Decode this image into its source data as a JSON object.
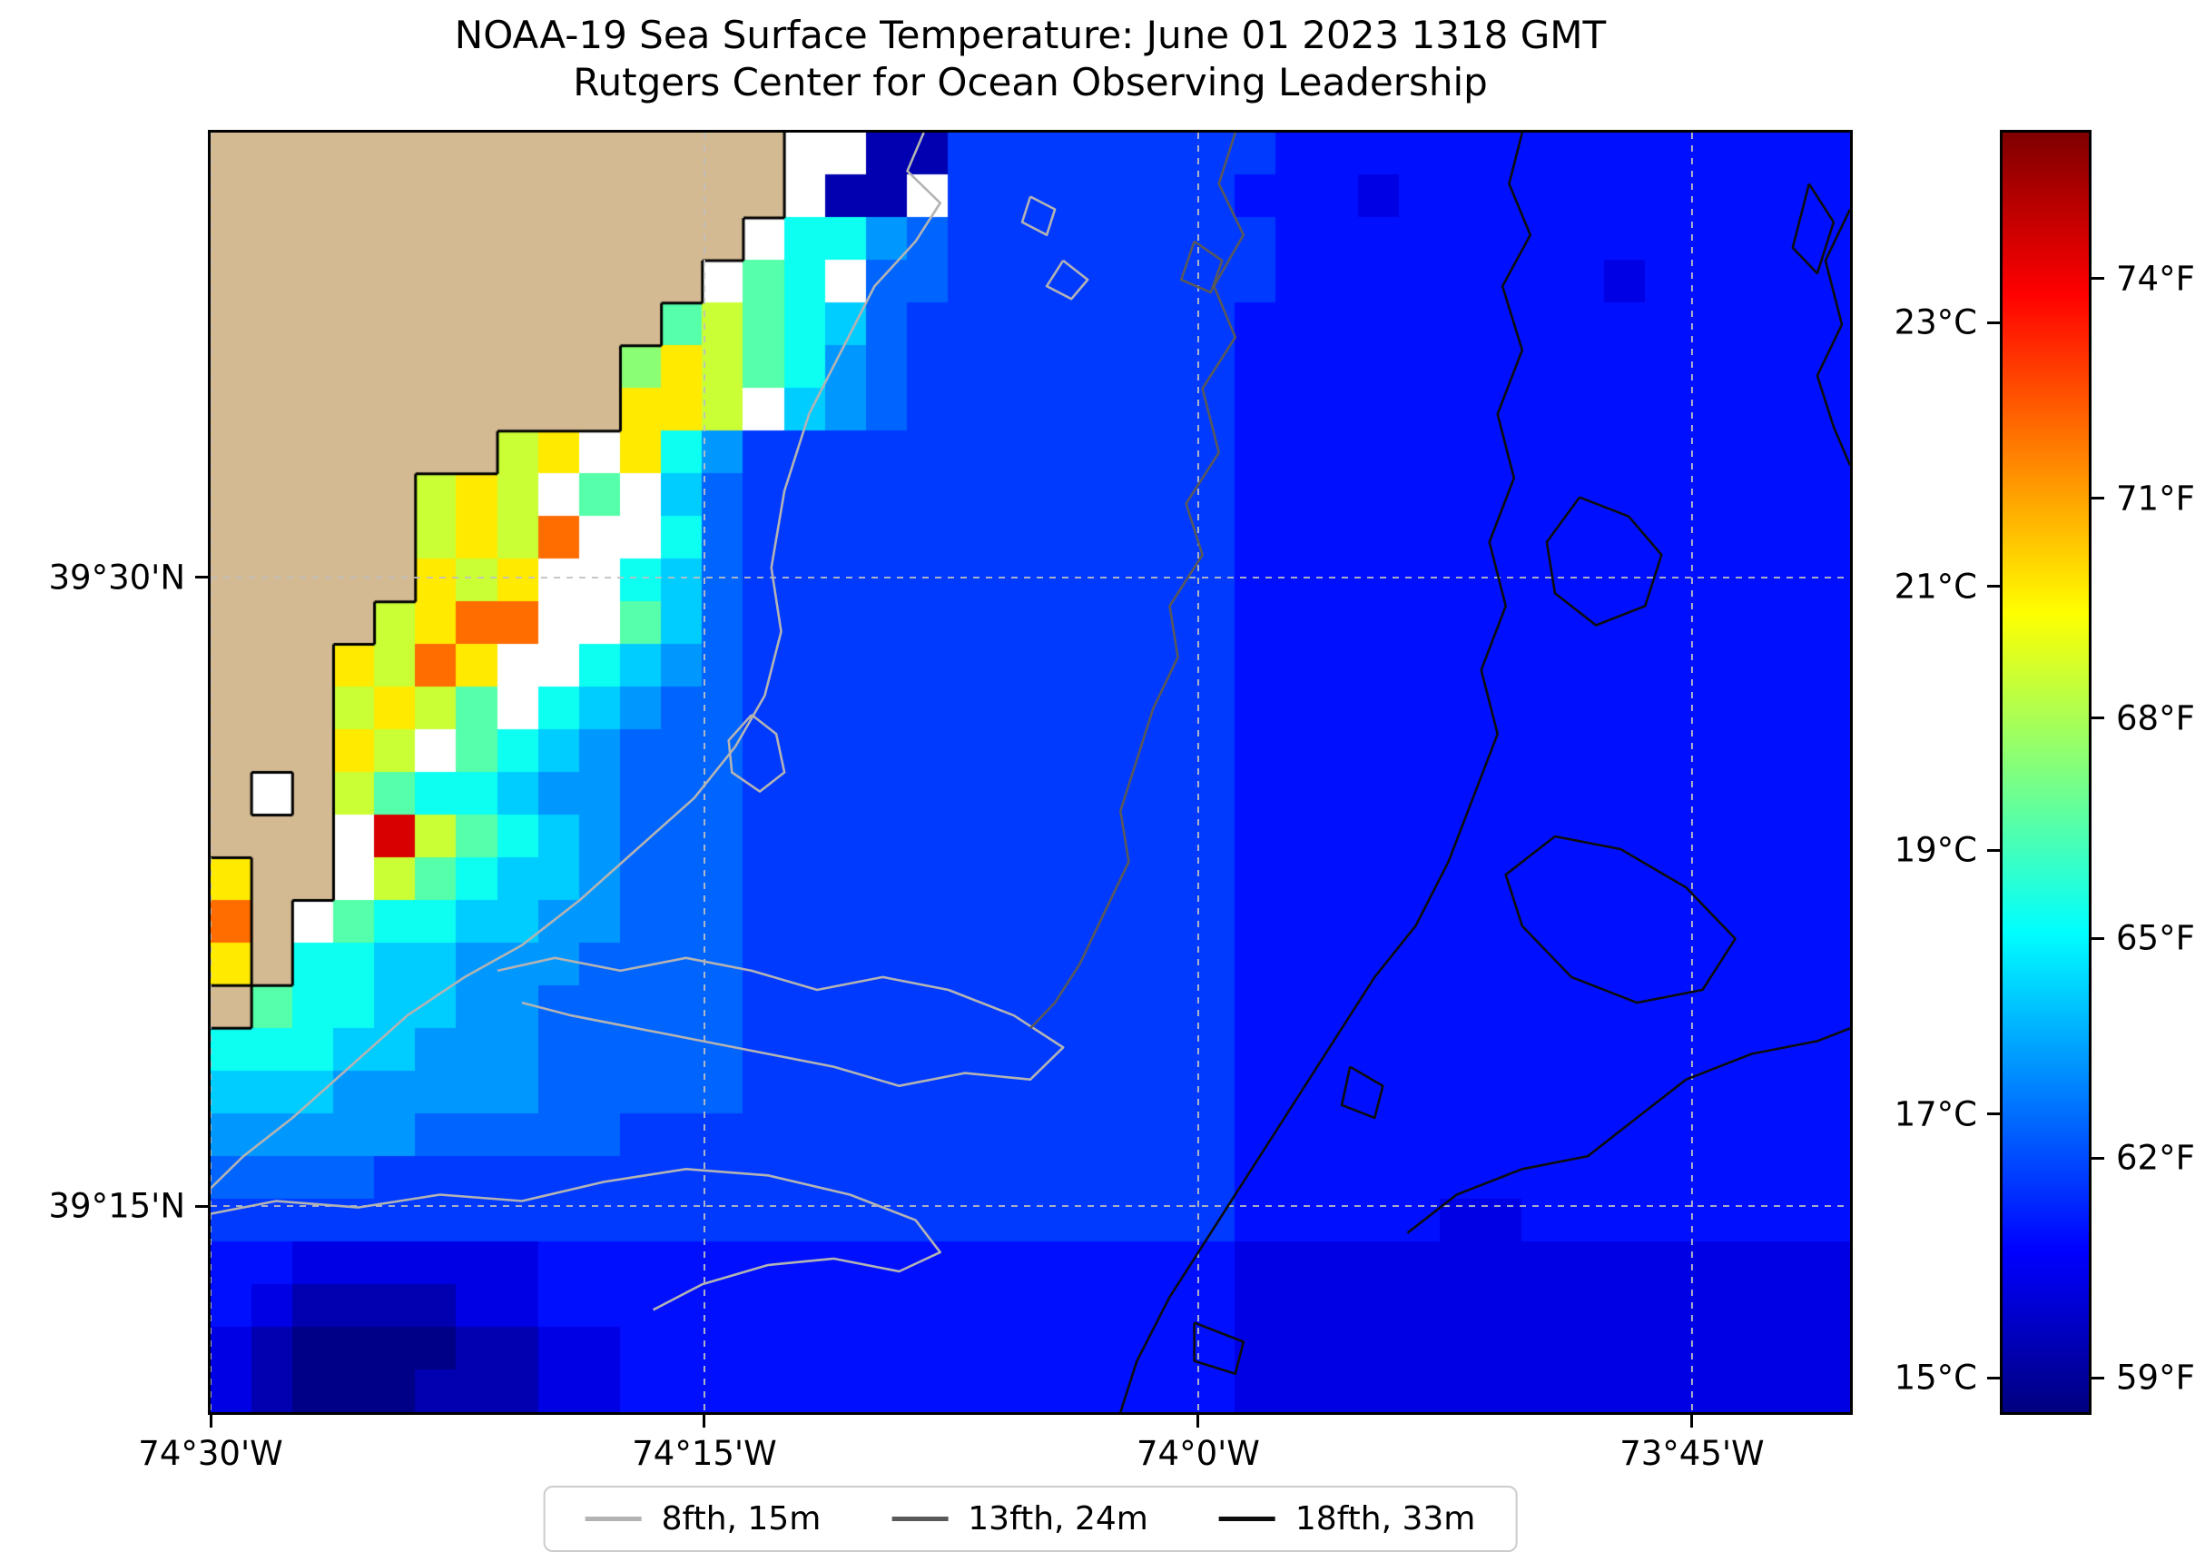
{
  "chart_data": {
    "type": "heatmap",
    "title": "NOAA-19 Sea Surface Temperature: June 01 2023 1318 GMT",
    "subtitle": "Rutgers Center for Ocean Observing Leadership",
    "xlabel": "",
    "ylabel": "",
    "lon_range": [
      -74.5,
      -73.67
    ],
    "lat_range": [
      39.168,
      39.677
    ],
    "grid_on": true,
    "colormap": "jet",
    "xticks": [
      {
        "lon": -74.5,
        "label": "74°30'W"
      },
      {
        "lon": -74.25,
        "label": "74°15'W"
      },
      {
        "lon": -74.0,
        "label": "74°0'W"
      },
      {
        "lon": -73.75,
        "label": "73°45'W"
      }
    ],
    "yticks": [
      {
        "lat": 39.5,
        "label": "39°30'N"
      },
      {
        "lat": 39.25,
        "label": "39°15'N"
      }
    ],
    "colorbar": {
      "vmin_c": 14.74,
      "vmax_c": 24.44,
      "ticks_celsius": [
        {
          "c": 15,
          "label": "15°C"
        },
        {
          "c": 17,
          "label": "17°C"
        },
        {
          "c": 19,
          "label": "19°C"
        },
        {
          "c": 21,
          "label": "21°C"
        },
        {
          "c": 23,
          "label": "23°C"
        }
      ],
      "ticks_fahrenheit": [
        {
          "c": 15.0,
          "label": "59°F"
        },
        {
          "c": 16.667,
          "label": "62°F"
        },
        {
          "c": 18.333,
          "label": "65°F"
        },
        {
          "c": 20.0,
          "label": "68°F"
        },
        {
          "c": 21.667,
          "label": "71°F"
        },
        {
          "c": 23.333,
          "label": "74°F"
        }
      ]
    },
    "legend": {
      "items": [
        {
          "label": "8fth, 15m",
          "color": "#b3b3b3"
        },
        {
          "label": "13fth, 24m",
          "color": "#595959"
        },
        {
          "label": "18fth, 33m",
          "color": "#0d0d0d"
        }
      ]
    },
    "colors": {
      "land": "#d4ba93",
      "nodata": "#ffffff",
      "coastline": "#000000",
      "gridline": "#c0c0c0"
    },
    "cell_encoding": {
      "L": "land",
      ".": "no-data",
      "0": 14.8,
      "1": 15.2,
      "2": 15.7,
      "3": 16.1,
      "4": 16.5,
      "5": 16.9,
      "6": 17.4,
      "7": 17.9,
      "8": 18.5,
      "9": 19.2,
      "a": 19.7,
      "b": 20.3,
      "c": 21.0,
      "d": 21.6,
      "e": 22.2,
      "f": 22.8,
      "g": 23.6
    },
    "sst_grid_rows_north_to_south": [
      "LLLLLLLLLLLLLL..114444444433333333333333",
      "LLLLLLLLLLLLLL.11.4444444333233333333333",
      "LLLLLLLLLLLLL.88654444444433333333333333",
      "LLLLLLLLLLLL.98.554444444433333333233333",
      "LLLLLLLLLLL9b987544444444333333333333333",
      "LLLLLLLLLLacb986544444444333333333333333",
      "LLLLLLLLLLccb.76544444444333333333333333",
      "LLLLLLLbc.c86444444444444333333333333333",
      "LLLLLbcb.9.75444444444444333333333333333",
      "LLLLLbcbe..85444444444444333333333333333",
      "LLLLLcbc..875444444444444333333333333333",
      "LLLLbcee..975444444444444333333333333333",
      "LLLcbec..8765444444444444333333333333333",
      "LLLbcb9.87655444444444444333333333333333",
      "LLLcb.9876555444444444444333333333333333",
      "L.Lb988766555444444444444333333333333333",
      "LLL.gb9876555444444444444333333333333333",
      "cLL.b98776555444444444444333333333333333",
      "eL.9887766555444444444444333333333333333",
      "cL88776665555444444444444333333333333333",
      "L988776655555444444444444333333333333333",
      "8887766655555444444444444333333333333333",
      "7776666655555444444444444333333333333333",
      "6666655555444444444444444333333333333333",
      "5555444444444444444444444333333333333333",
      "4444444444444444444444444333332233333333",
      "3322222233333333333333333222222222222222",
      "3211112233333333333333333222222222222222",
      "2100001122333333333333333222222222222222",
      "2100011122333333333333333222222222222222"
    ],
    "contours": [
      {
        "name": "8fth, 15m",
        "depth": "15m",
        "color": "#b3b3b3",
        "lines": [
          [
            [
              0.435,
              0.0
            ],
            [
              0.425,
              0.03
            ],
            [
              0.445,
              0.055
            ],
            [
              0.43,
              0.085
            ],
            [
              0.405,
              0.12
            ],
            [
              0.385,
              0.17
            ],
            [
              0.365,
              0.22
            ],
            [
              0.35,
              0.28
            ],
            [
              0.342,
              0.34
            ],
            [
              0.348,
              0.39
            ],
            [
              0.338,
              0.44
            ],
            [
              0.32,
              0.48
            ],
            [
              0.295,
              0.52
            ],
            [
              0.26,
              0.56
            ],
            [
              0.225,
              0.6
            ],
            [
              0.19,
              0.635
            ],
            [
              0.155,
              0.66
            ],
            [
              0.12,
              0.69
            ],
            [
              0.085,
              0.73
            ],
            [
              0.05,
              0.77
            ],
            [
              0.02,
              0.8
            ],
            [
              0.0,
              0.825
            ]
          ],
          [
            [
              0.33,
              0.455
            ],
            [
              0.345,
              0.47
            ],
            [
              0.35,
              0.5
            ],
            [
              0.335,
              0.515
            ],
            [
              0.318,
              0.5
            ],
            [
              0.316,
              0.475
            ],
            [
              0.33,
              0.455
            ]
          ],
          [
            [
              0.175,
              0.655
            ],
            [
              0.21,
              0.645
            ],
            [
              0.25,
              0.655
            ],
            [
              0.29,
              0.645
            ],
            [
              0.33,
              0.655
            ],
            [
              0.37,
              0.67
            ],
            [
              0.41,
              0.66
            ],
            [
              0.45,
              0.67
            ],
            [
              0.49,
              0.69
            ],
            [
              0.52,
              0.715
            ],
            [
              0.5,
              0.74
            ],
            [
              0.46,
              0.735
            ],
            [
              0.42,
              0.745
            ],
            [
              0.38,
              0.73
            ],
            [
              0.34,
              0.72
            ],
            [
              0.3,
              0.71
            ],
            [
              0.26,
              0.7
            ],
            [
              0.22,
              0.69
            ],
            [
              0.19,
              0.68
            ]
          ],
          [
            [
              0.0,
              0.845
            ],
            [
              0.04,
              0.835
            ],
            [
              0.09,
              0.84
            ],
            [
              0.14,
              0.83
            ],
            [
              0.19,
              0.835
            ],
            [
              0.24,
              0.82
            ],
            [
              0.29,
              0.81
            ],
            [
              0.34,
              0.815
            ],
            [
              0.39,
              0.83
            ],
            [
              0.43,
              0.85
            ],
            [
              0.445,
              0.875
            ],
            [
              0.42,
              0.89
            ],
            [
              0.38,
              0.88
            ],
            [
              0.34,
              0.885
            ],
            [
              0.3,
              0.9
            ],
            [
              0.27,
              0.92
            ]
          ],
          [
            [
              0.5,
              0.05
            ],
            [
              0.515,
              0.06
            ],
            [
              0.51,
              0.08
            ],
            [
              0.495,
              0.07
            ],
            [
              0.5,
              0.05
            ]
          ],
          [
            [
              0.52,
              0.1
            ],
            [
              0.535,
              0.115
            ],
            [
              0.525,
              0.13
            ],
            [
              0.51,
              0.12
            ],
            [
              0.52,
              0.1
            ]
          ]
        ]
      },
      {
        "name": "13fth, 24m",
        "depth": "24m",
        "color": "#595959",
        "lines": [
          [
            [
              0.625,
              0.0
            ],
            [
              0.615,
              0.04
            ],
            [
              0.63,
              0.08
            ],
            [
              0.612,
              0.12
            ],
            [
              0.625,
              0.16
            ],
            [
              0.605,
              0.2
            ],
            [
              0.615,
              0.25
            ],
            [
              0.595,
              0.29
            ],
            [
              0.605,
              0.33
            ],
            [
              0.585,
              0.37
            ],
            [
              0.59,
              0.41
            ],
            [
              0.575,
              0.45
            ],
            [
              0.565,
              0.49
            ],
            [
              0.555,
              0.53
            ],
            [
              0.56,
              0.57
            ],
            [
              0.545,
              0.61
            ],
            [
              0.53,
              0.65
            ],
            [
              0.515,
              0.68
            ],
            [
              0.5,
              0.7
            ]
          ],
          [
            [
              0.6,
              0.085
            ],
            [
              0.617,
              0.1
            ],
            [
              0.61,
              0.125
            ],
            [
              0.592,
              0.115
            ],
            [
              0.6,
              0.085
            ]
          ]
        ]
      },
      {
        "name": "18fth, 33m",
        "depth": "33m",
        "color": "#0d0d0d",
        "lines": [
          [
            [
              0.8,
              0.0
            ],
            [
              0.792,
              0.04
            ],
            [
              0.805,
              0.08
            ],
            [
              0.788,
              0.12
            ],
            [
              0.8,
              0.17
            ],
            [
              0.785,
              0.22
            ],
            [
              0.795,
              0.27
            ],
            [
              0.78,
              0.32
            ],
            [
              0.79,
              0.37
            ],
            [
              0.775,
              0.42
            ],
            [
              0.785,
              0.47
            ],
            [
              0.77,
              0.52
            ],
            [
              0.755,
              0.57
            ],
            [
              0.735,
              0.62
            ],
            [
              0.71,
              0.66
            ],
            [
              0.685,
              0.71
            ],
            [
              0.66,
              0.76
            ],
            [
              0.635,
              0.81
            ],
            [
              0.61,
              0.86
            ],
            [
              0.585,
              0.91
            ],
            [
              0.565,
              0.96
            ],
            [
              0.555,
              1.0
            ]
          ],
          [
            [
              0.835,
              0.285
            ],
            [
              0.865,
              0.3
            ],
            [
              0.885,
              0.33
            ],
            [
              0.875,
              0.37
            ],
            [
              0.845,
              0.385
            ],
            [
              0.82,
              0.36
            ],
            [
              0.815,
              0.32
            ],
            [
              0.835,
              0.285
            ]
          ],
          [
            [
              0.82,
              0.55
            ],
            [
              0.86,
              0.56
            ],
            [
              0.9,
              0.59
            ],
            [
              0.93,
              0.63
            ],
            [
              0.91,
              0.67
            ],
            [
              0.87,
              0.68
            ],
            [
              0.83,
              0.66
            ],
            [
              0.8,
              0.62
            ],
            [
              0.79,
              0.58
            ],
            [
              0.82,
              0.55
            ]
          ],
          [
            [
              0.975,
              0.04
            ],
            [
              0.99,
              0.07
            ],
            [
              0.98,
              0.11
            ],
            [
              0.965,
              0.09
            ],
            [
              0.975,
              0.04
            ]
          ],
          [
            [
              1.0,
              0.06
            ],
            [
              0.985,
              0.1
            ],
            [
              0.995,
              0.15
            ],
            [
              0.98,
              0.19
            ],
            [
              0.99,
              0.23
            ],
            [
              1.0,
              0.26
            ]
          ],
          [
            [
              0.73,
              0.86
            ],
            [
              0.76,
              0.83
            ],
            [
              0.8,
              0.81
            ],
            [
              0.84,
              0.8
            ],
            [
              0.87,
              0.77
            ],
            [
              0.9,
              0.74
            ],
            [
              0.94,
              0.72
            ],
            [
              0.98,
              0.71
            ],
            [
              1.0,
              0.7
            ]
          ],
          [
            [
              0.695,
              0.73
            ],
            [
              0.715,
              0.745
            ],
            [
              0.71,
              0.77
            ],
            [
              0.69,
              0.76
            ],
            [
              0.695,
              0.73
            ]
          ],
          [
            [
              0.6,
              0.93
            ],
            [
              0.63,
              0.945
            ],
            [
              0.625,
              0.97
            ],
            [
              0.6,
              0.96
            ],
            [
              0.6,
              0.93
            ]
          ]
        ]
      }
    ]
  }
}
